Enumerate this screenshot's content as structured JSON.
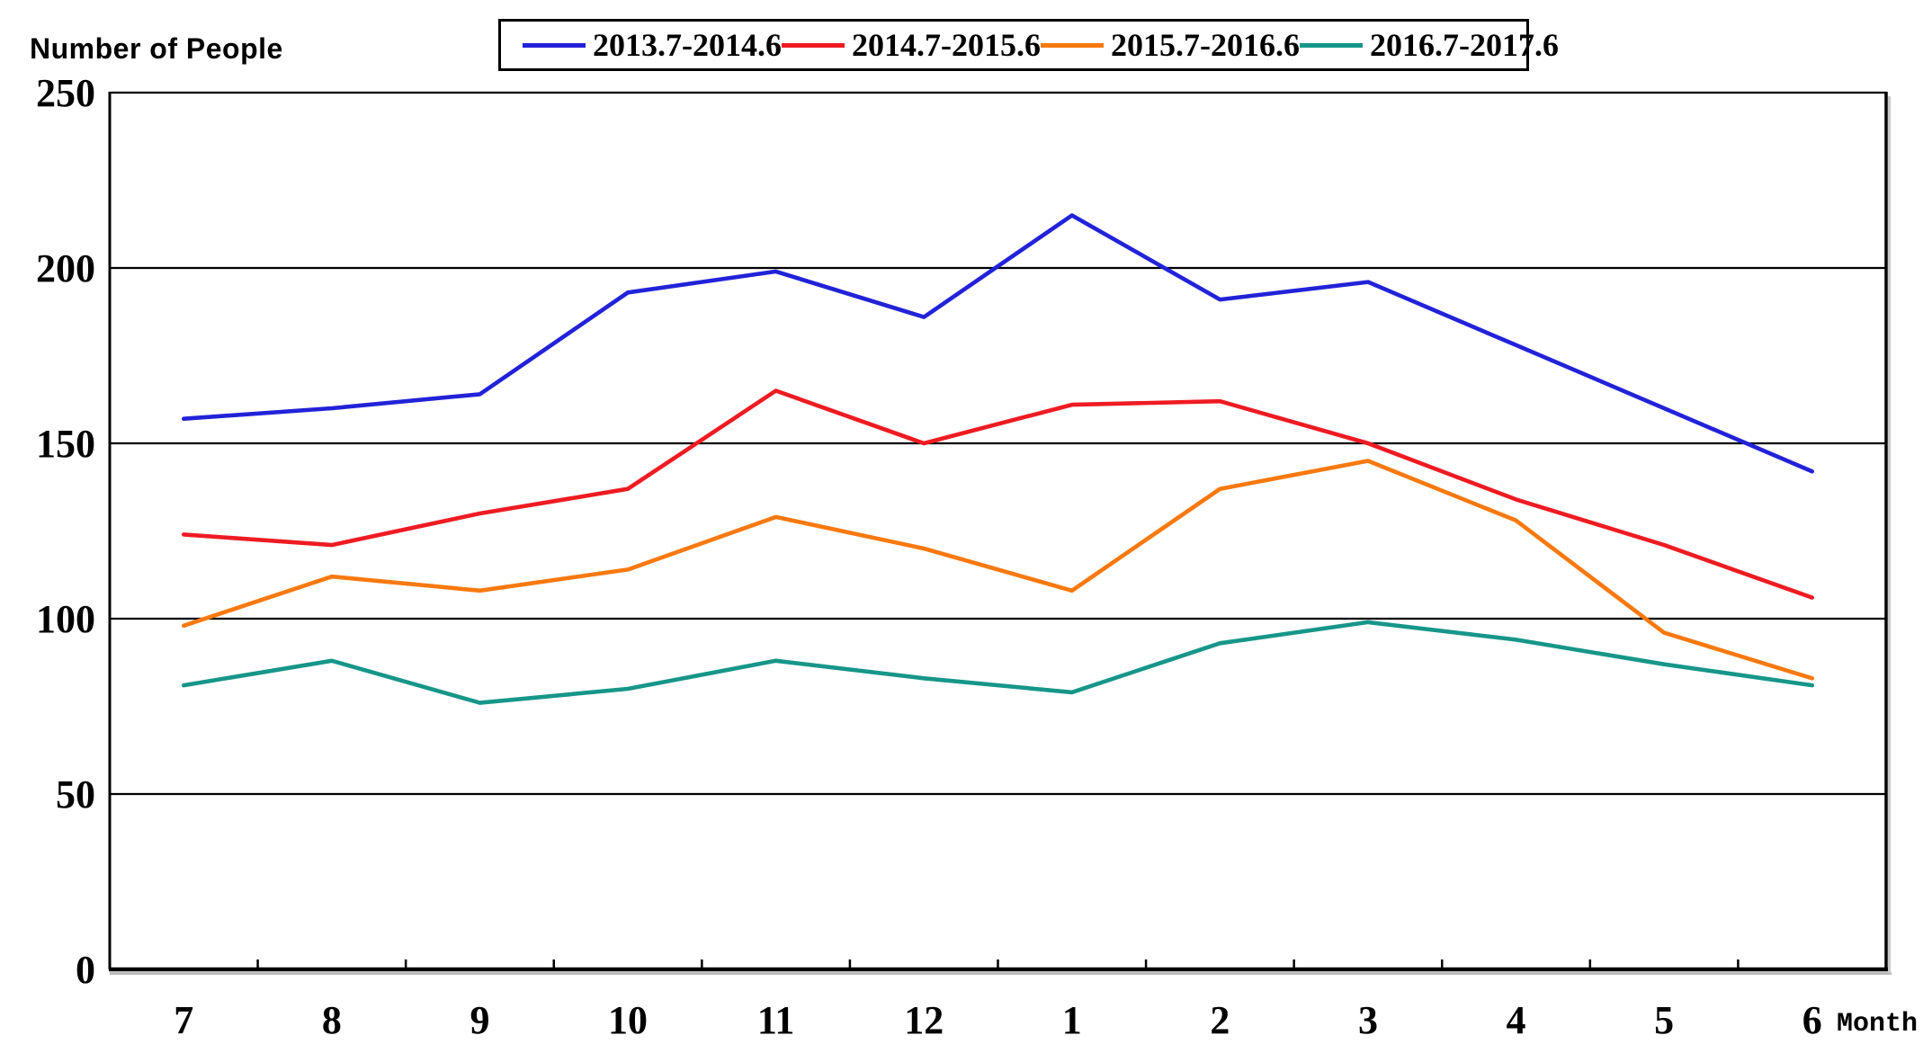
{
  "header": {
    "title": "Number of People"
  },
  "axis": {
    "month_label": "Month"
  },
  "chart_data": {
    "type": "line",
    "title": "Number of People by Month",
    "ylabel": "Number of People",
    "xlabel": "Month",
    "categories": [
      "7",
      "8",
      "9",
      "10",
      "11",
      "12",
      "1",
      "2",
      "3",
      "4",
      "5",
      "6"
    ],
    "ylim": [
      0,
      250
    ],
    "yticks": [
      0,
      50,
      100,
      150,
      200,
      250
    ],
    "grid": "horizontal-only",
    "legend_position": "top-center",
    "background": "#ffffff",
    "axis_color": "#000000",
    "series": [
      {
        "name": "2013.7-2014.6",
        "color": "#2222d8",
        "values": [
          157,
          160,
          164,
          193,
          199,
          186,
          215,
          191,
          196,
          178,
          160,
          142
        ]
      },
      {
        "name": "2014.7-2015.6",
        "color": "#ee1b22",
        "values": [
          124,
          121,
          130,
          137,
          165,
          150,
          161,
          162,
          150,
          134,
          121,
          106
        ]
      },
      {
        "name": "2015.7-2016.6",
        "color": "#f8790f",
        "values": [
          98,
          112,
          108,
          114,
          129,
          120,
          108,
          137,
          145,
          128,
          96,
          83
        ]
      },
      {
        "name": "2016.7-2017.6",
        "color": "#169689",
        "values": [
          81,
          88,
          76,
          80,
          88,
          83,
          79,
          93,
          99,
          94,
          87,
          81
        ]
      }
    ]
  }
}
